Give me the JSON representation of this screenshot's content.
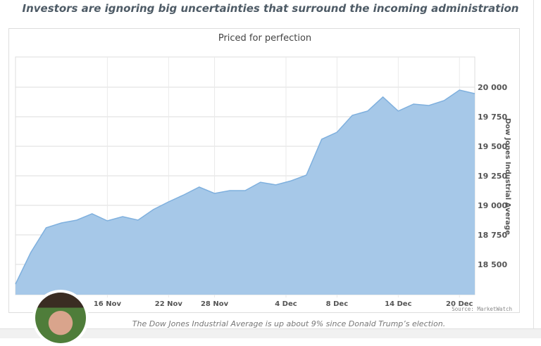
{
  "headline": "Investors are ignoring big uncertainties that surround the incoming administration",
  "caption": "The Dow Jones Industrial Average is up about 9% since Donald Trump’s election.",
  "chart_data": {
    "type": "area",
    "title": "Priced for perfection",
    "ylabel": "Dow Jones Industrial Average",
    "source": "Source: MarketWatch",
    "color": "#a6c8e8",
    "line_color": "#7fb0de",
    "grid": true,
    "ylim": [
      18244,
      20256
    ],
    "yticks": [
      {
        "value": 18500,
        "label": "18 500"
      },
      {
        "value": 18750,
        "label": "18 750"
      },
      {
        "value": 19000,
        "label": "19 000"
      },
      {
        "value": 19250,
        "label": "19 250"
      },
      {
        "value": 19500,
        "label": "19 500"
      },
      {
        "value": 19750,
        "label": "19 750"
      },
      {
        "value": 20000,
        "label": "20 000"
      }
    ],
    "xticks": [
      {
        "date": "2016-11-16",
        "label": "16 Nov"
      },
      {
        "date": "2016-11-22",
        "label": "22 Nov"
      },
      {
        "date": "2016-11-28",
        "label": "28 Nov"
      },
      {
        "date": "2016-12-04",
        "label": "4 Dec"
      },
      {
        "date": "2016-12-08",
        "label": "8 Dec"
      },
      {
        "date": "2016-12-14",
        "label": "14 Dec"
      },
      {
        "date": "2016-12-20",
        "label": "20 Dec"
      }
    ],
    "x": [
      "2016-11-08",
      "2016-11-09",
      "2016-11-10",
      "2016-11-11",
      "2016-11-14",
      "2016-11-15",
      "2016-11-16",
      "2016-11-17",
      "2016-11-18",
      "2016-11-21",
      "2016-11-22",
      "2016-11-23",
      "2016-11-25",
      "2016-11-28",
      "2016-11-29",
      "2016-11-30",
      "2016-12-01",
      "2016-12-02",
      "2016-12-05",
      "2016-12-06",
      "2016-12-07",
      "2016-12-08",
      "2016-12-09",
      "2016-12-12",
      "2016-12-13",
      "2016-12-14",
      "2016-12-15",
      "2016-12-16",
      "2016-12-19",
      "2016-12-20",
      "2016-12-21"
    ],
    "values": [
      18333,
      18601,
      18810,
      18851,
      18875,
      18929,
      18869,
      18905,
      18875,
      18964,
      19030,
      19089,
      19155,
      19101,
      19125,
      19125,
      19196,
      19173,
      19208,
      19256,
      19560,
      19619,
      19762,
      19798,
      19917,
      19798,
      19857,
      19845,
      19887,
      19976,
      19946
    ]
  }
}
